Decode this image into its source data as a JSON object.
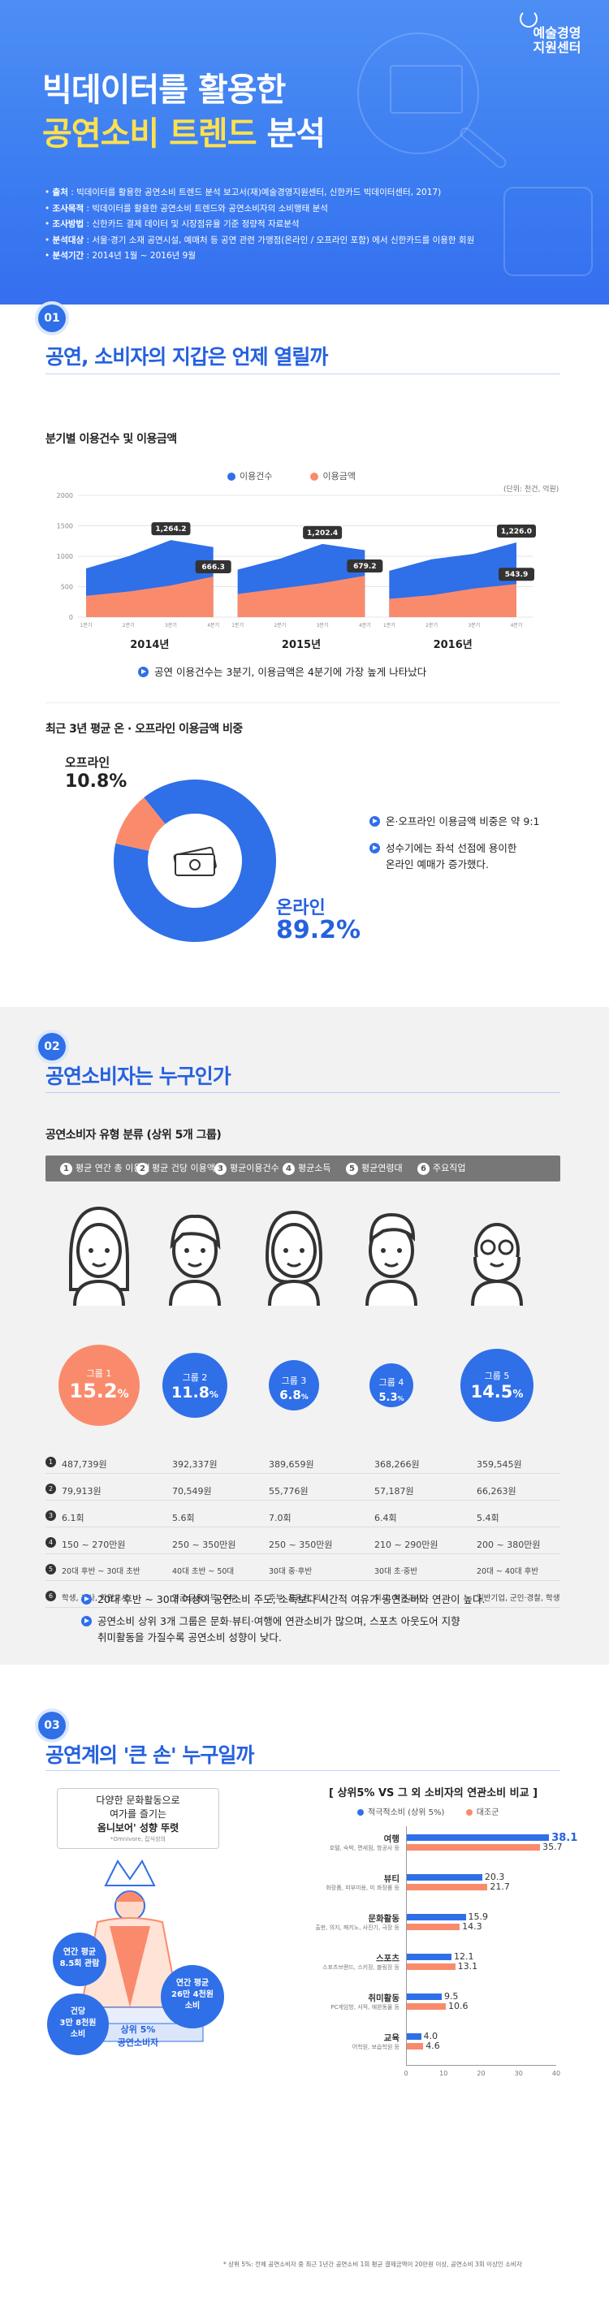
{
  "hero": {
    "title_line1": "빅데이터를 활용한",
    "title_highlight": "공연소비 트렌드",
    "title_rest": " 분석",
    "logo_line1": "예술경영",
    "logo_line2": "지원센터",
    "info": [
      {
        "label": "출처",
        "text": " : 빅데이터를 활용한 공연소비 트렌드 분석 보고서(재)예술경영지원센터, 신한카드 빅데이터센터, 2017)"
      },
      {
        "label": "조사목적",
        "text": " : 빅데이터를 활용한 공연소비 트렌드와 공연소비자의 소비행태 분석"
      },
      {
        "label": "조사방법",
        "text": " : 신한카드 결제 데이터 및 시장점유율 기준 정량적 자료분석"
      },
      {
        "label": "분석대상",
        "text": " : 서울·경기 소재 공연시설, 예매처 등 공연 관련 가맹점(온라인 / 오프라인 포함) 에서 신한카드를 이용한 회원"
      },
      {
        "label": "분석기간",
        "text": " : 2014년 1월 ~ 2016년 9월"
      }
    ]
  },
  "section1": {
    "num": "01",
    "title": "공연, 소비자의 지갑은 언제 열릴까",
    "chart1_title": "분기별 이용건수 및 이용금액",
    "legend_count": "이용건수",
    "legend_amount": "이용금액",
    "unit": "(단위: 천건, 억원)",
    "note1": "공연 이용건수는 3분기, 이용금액은 4분기에 가장 높게 나타났다",
    "chart2_title": "최근 3년 평균 온 · 오프라인 이용금액 비중",
    "offline_label": "오프라인",
    "offline_value": "10.8%",
    "online_label": "온라인",
    "online_value": "89.2%",
    "note2": "온·오프라인 이용금액 비중은 약 9:1",
    "note3_line1": "성수기에는 좌석 선점에 용이한",
    "note3_line2": "온라인 예매가 증가했다."
  },
  "chart_data": [
    {
      "type": "area",
      "title": "분기별 이용건수 및 이용금액",
      "unit": "(단위: 천건, 억원)",
      "groups": [
        "2014년",
        "2015년",
        "2016년"
      ],
      "quarters": [
        "1분기",
        "2분기",
        "3분기",
        "4분기"
      ],
      "yticks": [
        0,
        500,
        1000,
        1500,
        2000
      ],
      "ylim": [
        0,
        2000
      ],
      "series": [
        {
          "name": "이용건수",
          "color": "#2f6fe8",
          "labeled": [
            1264.2,
            1202.4,
            1226.0
          ]
        },
        {
          "name": "이용금액",
          "color": "#f98b6c",
          "labeled": [
            666.3,
            679.2,
            543.9
          ]
        }
      ],
      "labels": [
        "1,264.2",
        "666.3",
        "1,202.4",
        "679.2",
        "1,226.0",
        "543.9"
      ]
    },
    {
      "type": "pie",
      "title": "최근 3년 평균 온 · 오프라인 이용금액 비중",
      "categories": [
        "온라인",
        "오프라인"
      ],
      "values": [
        89.2,
        10.8
      ],
      "colors": [
        "#2f6fe8",
        "#f98b6c"
      ]
    },
    {
      "type": "bar",
      "title": "상위5% VS 그 외 소비자의 연관소비 비교",
      "categories": [
        "여행",
        "뷰티",
        "문화활동",
        "스포츠",
        "취미활동",
        "교육"
      ],
      "series": [
        {
          "name": "적극적소비 (상위 5%)",
          "color": "#2f6fe8",
          "values": [
            38.1,
            20.3,
            15.9,
            12.1,
            9.5,
            4.0
          ]
        },
        {
          "name": "대조군",
          "color": "#f98b6c",
          "values": [
            35.7,
            21.7,
            14.3,
            13.1,
            10.6,
            4.6
          ]
        }
      ],
      "xticks": [
        0,
        10,
        20,
        30,
        40
      ],
      "xlim": [
        0,
        40
      ]
    }
  ],
  "section2": {
    "num": "02",
    "title": "공연소비자는 누구인가",
    "subtitle": "공연소비자 유형 분류 (상위 5개 그룹)",
    "tabs": [
      "평균 연간 총 이용액",
      "평균 건당 이용액",
      "평균이용건수",
      "평균소득",
      "평균연령대",
      "주요직업"
    ],
    "groups": [
      {
        "label": "그룹 1",
        "value": "15.2",
        "color": "#f98b6c"
      },
      {
        "label": "그룹 2",
        "value": "11.8",
        "color": "#2f6fe8"
      },
      {
        "label": "그룹 3",
        "value": "6.8",
        "color": "#2f6fe8"
      },
      {
        "label": "그룹 4",
        "value": "5.3",
        "color": "#2f6fe8"
      },
      {
        "label": "그룹 5",
        "value": "14.5",
        "color": "#2f6fe8"
      }
    ],
    "rows": [
      [
        "487,739원",
        "392,337원",
        "389,659원",
        "368,266원",
        "359,545원"
      ],
      [
        "79,913원",
        "70,549원",
        "55,776원",
        "57,187원",
        "66,263원"
      ],
      [
        "6.1회",
        "5.6회",
        "7.0회",
        "6.4회",
        "5.4회"
      ],
      [
        "150 ~ 270만원",
        "250 ~ 350만원",
        "250 ~ 350만원",
        "210 ~ 290만원",
        "200 ~ 380만원"
      ],
      [
        "20대 후반 ~ 30대 초반",
        "40대 초반 ~ 50대",
        "30대 중·후반",
        "30대 초·중반",
        "20대 ~ 40대 후반"
      ],
      [
        "학생, 교사, 학원교사",
        "연금·금융소득, 주부",
        "주부, 금융권, 의사",
        "의사, 학원교사",
        "일반기업, 군인·경찰, 학생"
      ]
    ],
    "note1": "20대 후반 ~ 30대 여성이 공연소비 주도, 소득보다 시간적 여유가 공연소비와 연관이 높다.",
    "note2_line1": "공연소비 상위 3개 그룹은 문화·뷰티·여행에 연관소비가 많으며, 스포츠 아웃도어 지향",
    "note2_line2": "취미활동을 가질수록 공연소비 성향이 낮다."
  },
  "section3": {
    "num": "03",
    "title": "공연계의 '큰 손' 누구일까",
    "bubble_line1": "다양한 문화활동으로",
    "bubble_line2": "여가를 즐기는",
    "bubble_line3": "옴니보어' 성향 뚜렷",
    "bubble_note": "*Omnivore, 잡식성의",
    "stat1_line1": "연간 평균",
    "stat1_line2": "8.5회 관람",
    "stat2_line1": "건당",
    "stat2_line2": "3만 8천원",
    "stat2_line3": "소비",
    "stat3_line1": "연간 평균",
    "stat3_line2": "26만 4천원",
    "stat3_line3": "소비",
    "podium_line1": "상위 5%",
    "podium_line2": "공연소비자",
    "chart_title": "상위5% VS 그 외 소비자의 연관소비 비교",
    "legend_top": "적극적소비 (상위 5%)",
    "legend_ctrl": "대조군",
    "categories": [
      {
        "name": "여행",
        "desc": "호텔, 숙박, 면세점, 항공사 등",
        "a": "38.1",
        "b": "35.7"
      },
      {
        "name": "뷰티",
        "desc": "화장품, 피부미용, 미 화장품 등",
        "a": "20.3",
        "b": "21.7"
      },
      {
        "name": "문화활동",
        "desc": "출판, 의지, 패키노, 사진기, 극장 등",
        "a": "15.9",
        "b": "14.3"
      },
      {
        "name": "스포츠",
        "desc": "스포츠브랜드, 스키장, 볼링장 등",
        "a": "12.1",
        "b": "13.1"
      },
      {
        "name": "취미활동",
        "desc": "PC게임방, 서적, 애완동물 등",
        "a": "9.5",
        "b": "10.6"
      },
      {
        "name": "교육",
        "desc": "어학원, 보습학원 등",
        "a": "4.0",
        "b": "4.6"
      }
    ],
    "xticks": [
      "0",
      "10",
      "20",
      "30",
      "40"
    ],
    "footnote": "* 상위 5%: 전체 공연소비자 중 최근 1년간 공연소비 1회 평균 결제금액이 20만원 이상, 공연소비 3회 이상인 소비자"
  }
}
